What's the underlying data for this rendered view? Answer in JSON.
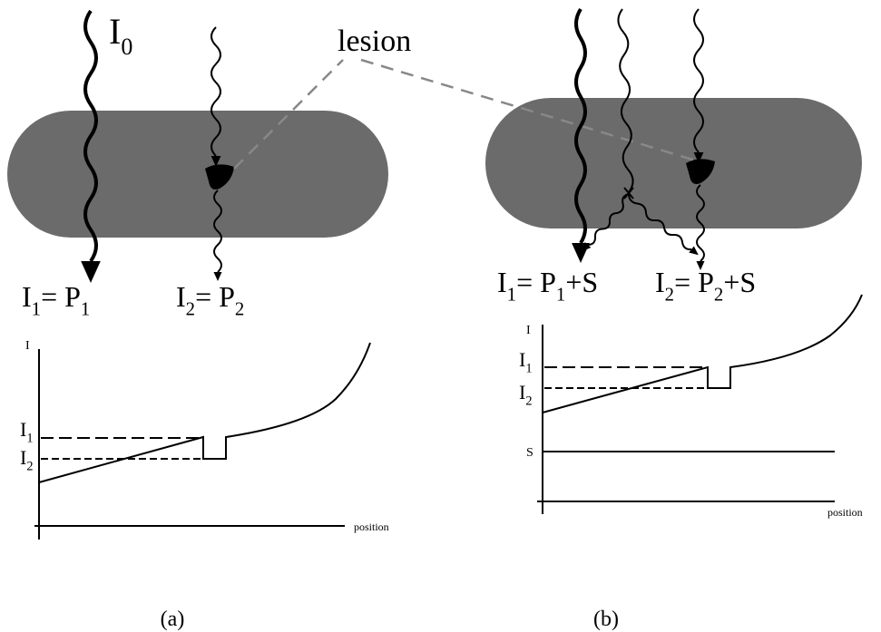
{
  "labels": {
    "incident": [
      "I",
      "0"
    ],
    "lesion": "lesion",
    "a_left": [
      "I",
      "1",
      "= P",
      "1"
    ],
    "a_right": [
      "I",
      "2",
      "= P",
      "2"
    ],
    "b_left": [
      "I",
      "1",
      "= P",
      "1",
      "+S"
    ],
    "b_right": [
      "I",
      "2",
      "= P",
      "2",
      "+S"
    ]
  },
  "graph_a": {
    "y_label": "I",
    "i1": [
      "I",
      "1"
    ],
    "i2": [
      "I",
      "2"
    ],
    "x_label": "position"
  },
  "graph_b": {
    "y_label": "I",
    "i1": [
      "I",
      "1"
    ],
    "i2": [
      "I",
      "2"
    ],
    "s_label": "S",
    "x_label": "position"
  },
  "captions": [
    "(a)",
    "(b)"
  ]
}
